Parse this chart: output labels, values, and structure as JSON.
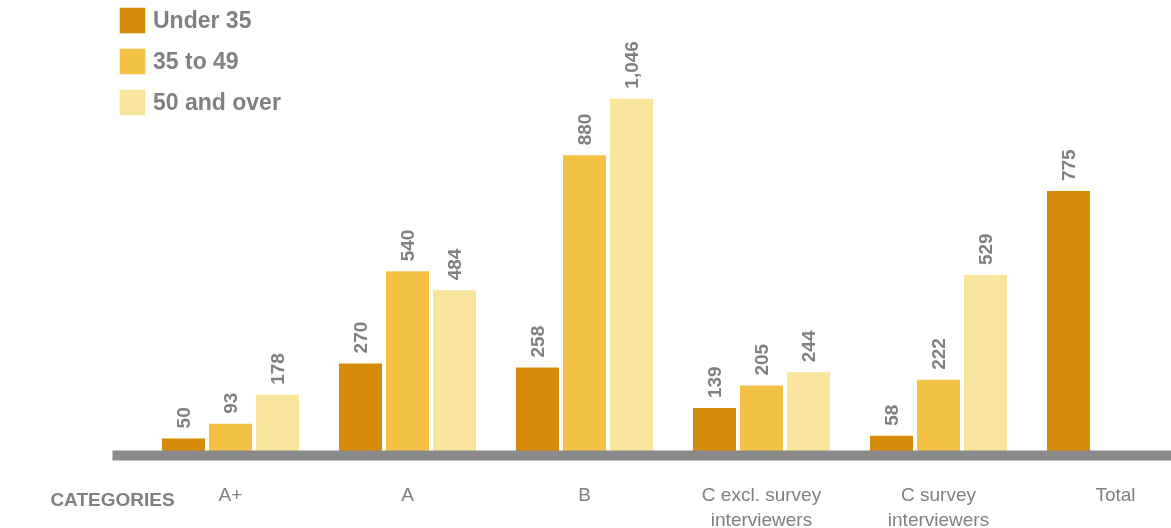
{
  "chart_data": {
    "type": "bar",
    "xlabel": "CATEGORIES",
    "categories": [
      "A+",
      "A",
      "B",
      "C excl. survey interviewers",
      "C survey interviewers",
      "Total"
    ],
    "series": [
      {
        "name": "Under 35",
        "color": "#d68a0a",
        "values": [
          50,
          270,
          258,
          139,
          58,
          775
        ],
        "value_labels": [
          "50",
          "270",
          "258",
          "139",
          "58",
          "775"
        ]
      },
      {
        "name": "35 to 49",
        "color": "#f3c244",
        "values": [
          93,
          540,
          880,
          205,
          222,
          null
        ],
        "value_labels": [
          "93",
          "540",
          "880",
          "205",
          "222",
          null
        ]
      },
      {
        "name": "50 and over",
        "color": "#f9e49b",
        "values": [
          178,
          484,
          1046,
          244,
          529,
          null
        ],
        "value_labels": [
          "178",
          "484",
          "1,046",
          "244",
          "529",
          null
        ]
      }
    ],
    "tick_labels": "x",
    "grid": false,
    "legend": "top left"
  }
}
